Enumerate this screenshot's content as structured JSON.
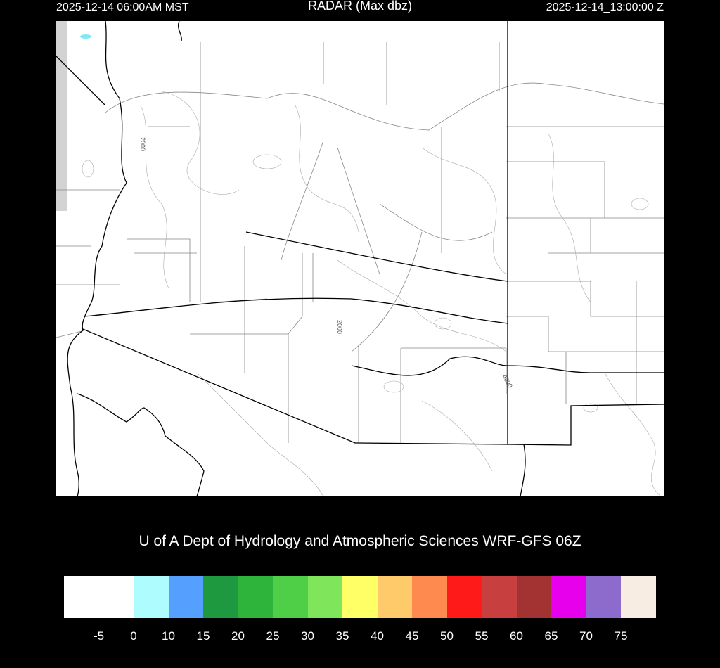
{
  "header": {
    "local_time": "2025-12-14 06:00AM MST",
    "title": "RADAR (Max dbz)",
    "utc_time": "2025-12-14_13:00:00 Z"
  },
  "map": {
    "contour_labels": [
      "2000",
      "2000",
      "4000"
    ]
  },
  "credit": "U of A Dept of Hydrology and Atmospheric Sciences WRF-GFS 06Z",
  "colorbar": {
    "ticks": [
      "-5",
      "0",
      "10",
      "15",
      "20",
      "25",
      "30",
      "35",
      "40",
      "45",
      "50",
      "55",
      "60",
      "65",
      "70",
      "75"
    ],
    "colors": [
      "#ffffff",
      "#aefcfd",
      "#55a0ff",
      "#1f993f",
      "#2eb33b",
      "#4fcf48",
      "#7fe65c",
      "#ffff66",
      "#ffcb6a",
      "#ff8a4f",
      "#ff1a1a",
      "#c83f3f",
      "#a33333",
      "#e600ec",
      "#8c6bcc",
      "#f7ede3"
    ]
  }
}
